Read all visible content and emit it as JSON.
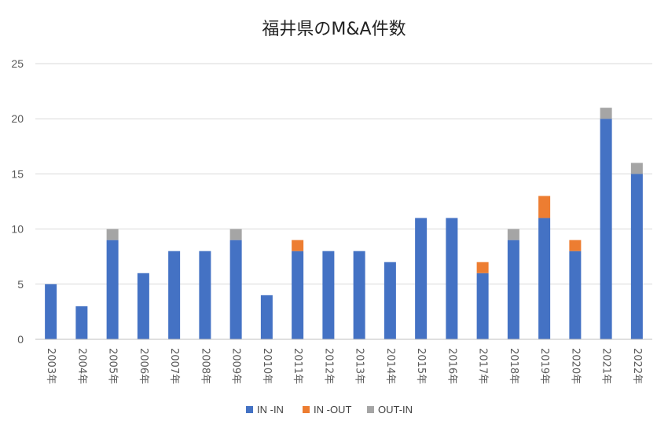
{
  "chart_data": {
    "type": "bar",
    "stacked": true,
    "title": "福井県のM&A件数",
    "xlabel": "",
    "ylabel": "",
    "ylim": [
      0,
      25
    ],
    "yticks": [
      0,
      5,
      10,
      15,
      20,
      25
    ],
    "grid": true,
    "legend_position": "bottom",
    "categories": [
      "2003年",
      "2004年",
      "2005年",
      "2006年",
      "2007年",
      "2008年",
      "2009年",
      "2010年",
      "2011年",
      "2012年",
      "2013年",
      "2014年",
      "2015年",
      "2016年",
      "2017年",
      "2018年",
      "2019年",
      "2020年",
      "2021年",
      "2022年"
    ],
    "series": [
      {
        "name": "IN -IN",
        "color": "#4472c4",
        "values": [
          5,
          3,
          9,
          6,
          8,
          8,
          9,
          4,
          8,
          8,
          8,
          7,
          11,
          11,
          6,
          9,
          11,
          8,
          20,
          15
        ]
      },
      {
        "name": "IN -OUT",
        "color": "#ed7d31",
        "values": [
          0,
          0,
          0,
          0,
          0,
          0,
          0,
          0,
          1,
          0,
          0,
          0,
          0,
          0,
          1,
          0,
          2,
          1,
          0,
          0
        ]
      },
      {
        "name": "OUT-IN",
        "color": "#a5a5a5",
        "values": [
          0,
          0,
          1,
          0,
          0,
          0,
          1,
          0,
          0,
          0,
          0,
          0,
          0,
          0,
          0,
          1,
          0,
          0,
          1,
          1
        ]
      }
    ]
  }
}
